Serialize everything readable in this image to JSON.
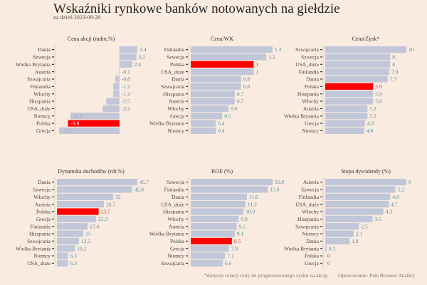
{
  "title": "Wskaźniki rynkowe banków notowanych na giełdzie",
  "subtitle": "na dzień 2023-09-28",
  "footnote": "*dotyczy relacji ceny do prognozowanego zysku na akcję",
  "source": "Opracowanie: Puls Biznesu Analizy",
  "colors": {
    "bar": "#c1c7d8",
    "highlight": "#ff0000",
    "label": "#4b8c98",
    "highlight_label": "#e03030",
    "background": "#faebe0"
  },
  "chart_data": [
    {
      "type": "bar",
      "orientation": "horizontal",
      "title": "Cena akcji (mdm,%)",
      "categories": [
        "Dania",
        "Szwecja",
        "Wielka Brytania",
        "Austria",
        "Szwajcaria",
        "Finlandia",
        "Włochy",
        "Hiszpania",
        "USA_duże",
        "Niemcy",
        "Polska",
        "Grecja"
      ],
      "values": [
        3.4,
        3.2,
        2.4,
        -0.1,
        -0.8,
        -1.2,
        -1.2,
        -2.5,
        -3.2,
        -9.3,
        -9.8,
        -11.5
      ],
      "highlight": "Polska",
      "xlim": [
        -11.9,
        3.4
      ]
    },
    {
      "type": "bar",
      "orientation": "horizontal",
      "title": "Cena/WK",
      "categories": [
        "Finlandia",
        "Szwecja",
        "Polska",
        "USA_duże",
        "Dania",
        "Szwajcaria",
        "Hiszpania",
        "Austria",
        "Włochy",
        "Grecja",
        "Wielka Brytania",
        "Niemcy"
      ],
      "values": [
        1.3,
        1.2,
        1,
        1,
        0.8,
        0.8,
        0.7,
        0.7,
        0.6,
        0.5,
        0.4,
        0.4
      ],
      "highlight": "Polska",
      "xlim": [
        0,
        1.3
      ]
    },
    {
      "type": "bar",
      "orientation": "horizontal",
      "title": "Cena/Zysk*",
      "categories": [
        "Szwajcaria",
        "Szwecja",
        "USA_duże",
        "Finlandia",
        "Dania",
        "Polska",
        "Hiszpania",
        "Włochy",
        "Austria",
        "Wielka Brytania",
        "Grecja",
        "Niemcy"
      ],
      "values": [
        10,
        8,
        8,
        7.9,
        7.7,
        5.9,
        5.9,
        5.9,
        5.2,
        5.2,
        4.9,
        4.8
      ],
      "highlight": "Polska",
      "xlim": [
        0,
        10
      ]
    },
    {
      "type": "bar",
      "orientation": "horizontal",
      "title": "Dynamika dochodów (rdr,%)",
      "categories": [
        "Dania",
        "Szwecja",
        "Włochy",
        "Austria",
        "Polska",
        "Grecja",
        "Finlandia",
        "Hiszpania",
        "Szwajcaria",
        "Wielka Brytania",
        "Niemcy",
        "USA_duże"
      ],
      "values": [
        45.7,
        42.8,
        32,
        26.7,
        23.7,
        22.3,
        17.4,
        15,
        12.5,
        10.2,
        6.3,
        6.3
      ],
      "highlight": "Polska",
      "xlim": [
        0,
        45.7
      ]
    },
    {
      "type": "bar",
      "orientation": "horizontal",
      "title": "ROE (%)",
      "categories": [
        "Szwecja",
        "Finlandia",
        "Dania",
        "USA_duże",
        "Hiszpania",
        "Włochy",
        "Austria",
        "Wielka Brytania",
        "Polska",
        "Grecja",
        "Niemcy",
        "Szwajcaria"
      ],
      "values": [
        16.9,
        15.9,
        11.6,
        11.3,
        10.9,
        9.9,
        9.5,
        9.1,
        8.5,
        7.9,
        7.1,
        6.6
      ],
      "highlight": "Polska",
      "xlim": [
        0,
        16.9
      ]
    },
    {
      "type": "bar",
      "orientation": "horizontal",
      "title": "Stopa dywidendy (%)",
      "categories": [
        "Austria",
        "Szwecja",
        "Finlandia",
        "USA_duże",
        "Włochy",
        "Hiszpania",
        "Szwajcaria",
        "Niemcy",
        "Dania",
        "Wielka Brytania",
        "Polska",
        "Grecja"
      ],
      "values": [
        6,
        5.2,
        4.8,
        4.7,
        4.3,
        3.5,
        2.5,
        2.1,
        1.8,
        0.1,
        0,
        0
      ],
      "highlight": "Polska",
      "xlim": [
        0,
        6
      ]
    }
  ]
}
